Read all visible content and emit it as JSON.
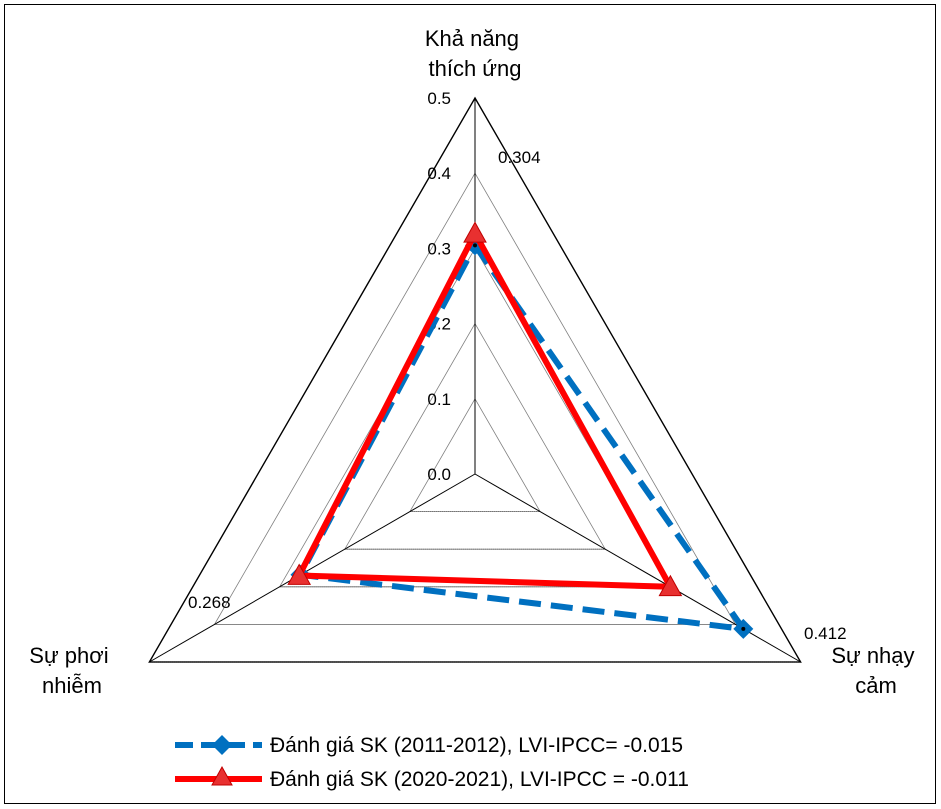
{
  "chart_data": {
    "type": "radar",
    "axes": [
      {
        "label_lines": [
          "Khả năng",
          "thích ứng"
        ]
      },
      {
        "label_lines": [
          "Sự nhạy",
          "cảm"
        ]
      },
      {
        "label_lines": [
          "Sự phơi",
          "nhiễm"
        ]
      }
    ],
    "radial_ticks": [
      "0.0",
      "0.1",
      "0.2",
      "0.3",
      "0.4",
      "0.5"
    ],
    "rlim": [
      0,
      0.5
    ],
    "series": [
      {
        "name": "Đánh giá SK (2011-2012), LVI-IPCC= -0.015",
        "values": [
          0.304,
          0.412,
          0.268
        ],
        "color": "#0070C0",
        "line": "dashed",
        "marker": "diamond"
      },
      {
        "name": "Đánh giá SK (2020-2021), LVI-IPCC = -0.011",
        "values": [
          0.32,
          0.3,
          0.27
        ],
        "color": "#FF0000",
        "line": "solid",
        "marker": "triangle"
      }
    ],
    "data_labels": [
      "0.304",
      "0.412",
      "0.268"
    ],
    "legend_position": "bottom",
    "grid": true
  }
}
